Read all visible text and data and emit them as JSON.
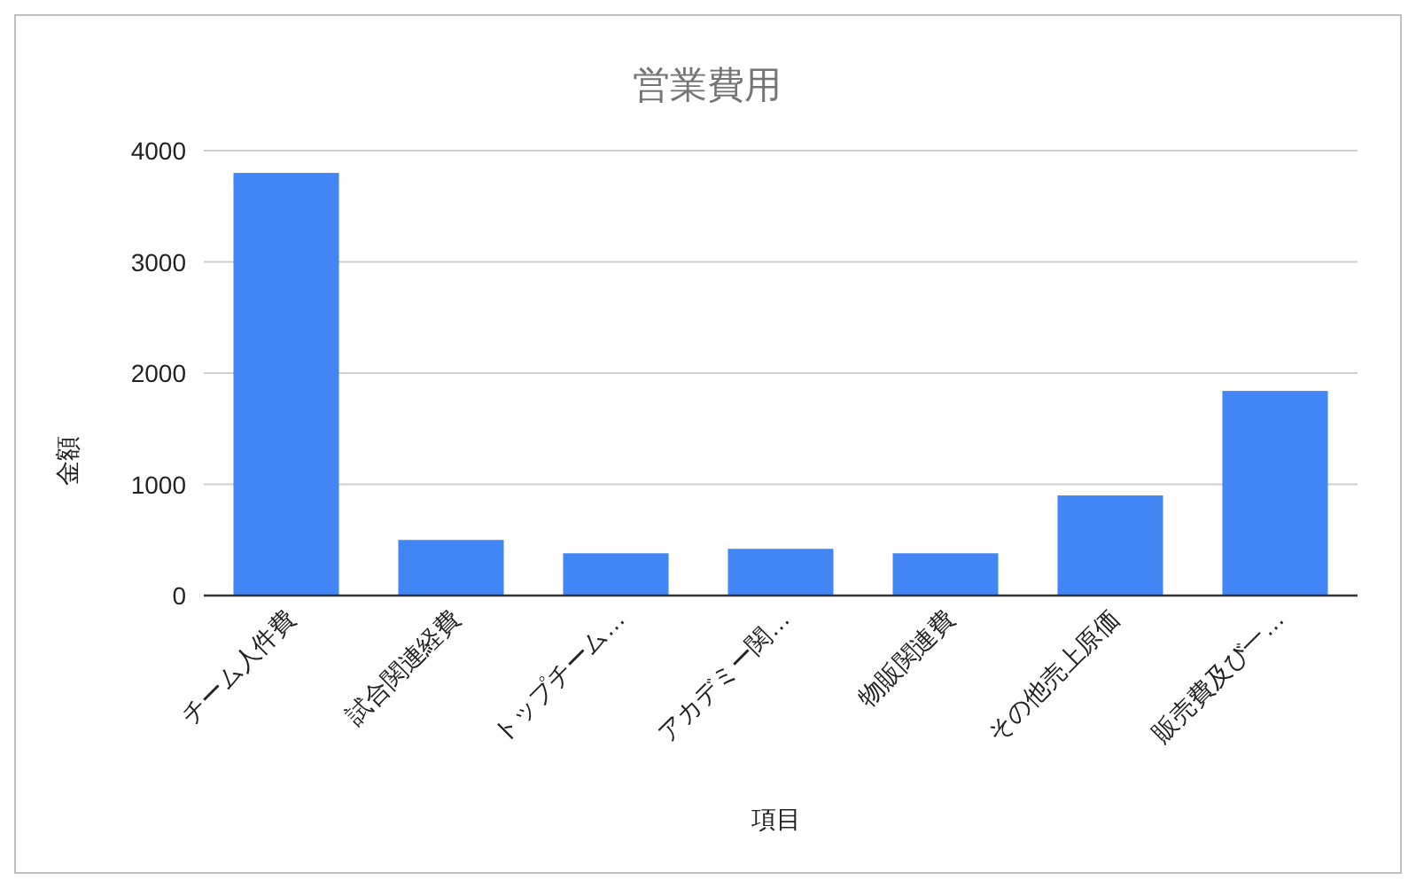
{
  "chart_data": {
    "type": "bar",
    "title": "営業費用",
    "xlabel": "項目",
    "ylabel": "金額",
    "categories": [
      "チーム人件費",
      "試合関連経費",
      "トップチーム…",
      "アカデミー関…",
      "物販関連費",
      "その他売上原価",
      "販売費及び一…"
    ],
    "values": [
      3800,
      500,
      380,
      420,
      380,
      900,
      1840
    ],
    "color": "#4285f4",
    "ylim": [
      0,
      4000
    ],
    "yticks": [
      0,
      1000,
      2000,
      3000,
      4000
    ],
    "grid": "y"
  }
}
